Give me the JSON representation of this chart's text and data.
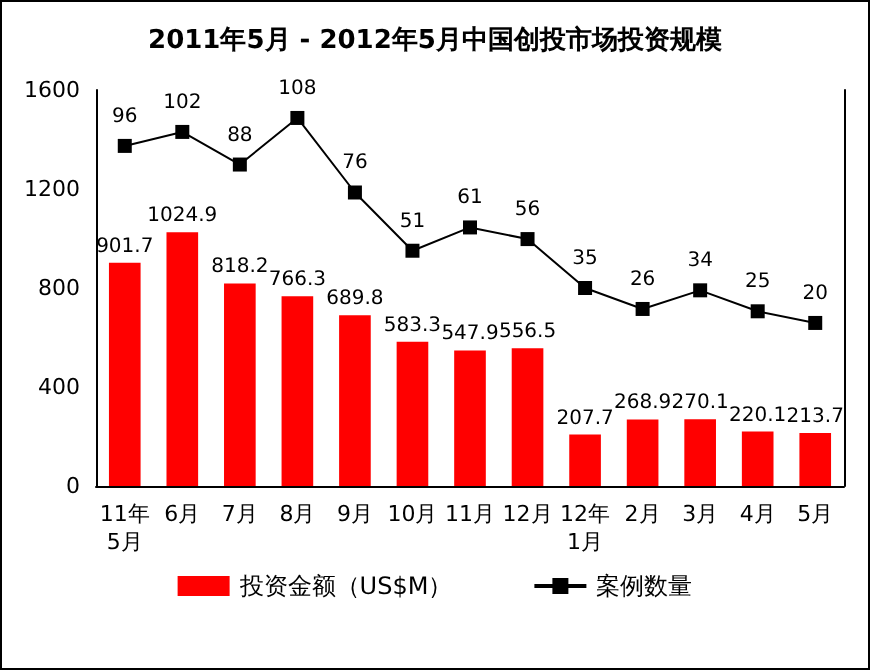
{
  "chart_data": {
    "type": "bar",
    "title": "2011年5月 - 2012年5月中国创投市场投资规模",
    "categories": [
      "11年\n5月",
      "6月",
      "7月",
      "8月",
      "9月",
      "10月",
      "11月",
      "12月",
      "12年\n1月",
      "2月",
      "3月",
      "4月",
      "5月"
    ],
    "series": [
      {
        "name": "投资金额（US$M）",
        "color": "#ff0000",
        "values": [
          901.7,
          1024.9,
          818.2,
          766.3,
          689.8,
          583.3,
          547.9,
          556.5,
          207.7,
          268.9,
          270.1,
          220.1,
          213.7
        ]
      },
      {
        "name": "案例数量",
        "type": "line",
        "axis": "y2",
        "color": "#000000",
        "values": [
          96,
          102,
          88,
          108,
          76,
          51,
          61,
          56,
          35,
          26,
          34,
          25,
          20
        ]
      }
    ],
    "ylim": [
      0,
      1600
    ],
    "yticks": [
      0,
      400,
      800,
      1200,
      1600
    ],
    "y2lim": [
      -50,
      120
    ],
    "data_labels": true,
    "grid": false,
    "legend": "bottom",
    "marker": "square",
    "line_style": "solid"
  }
}
